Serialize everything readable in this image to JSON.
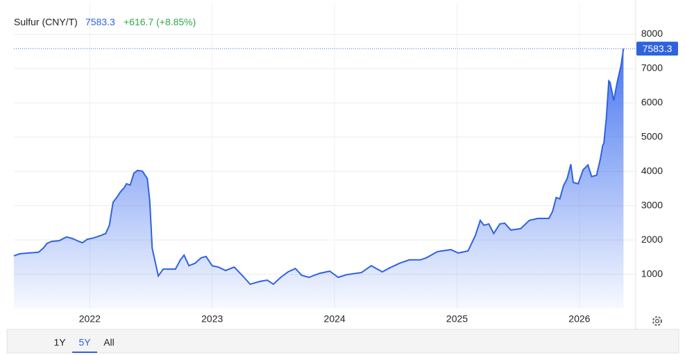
{
  "chart_data": {
    "type": "area",
    "title": "Sulfur (CNY/T)",
    "change": "+616.7 (+8.85%)",
    "x": [
      2021.38,
      2021.43,
      2021.5,
      2021.58,
      2021.62,
      2021.65,
      2021.69,
      2021.75,
      2021.81,
      2021.86,
      2021.91,
      2021.94,
      2021.98,
      2022.03,
      2022.09,
      2022.13,
      2022.16,
      2022.19,
      2022.22,
      2022.25,
      2022.28,
      2022.3,
      2022.33,
      2022.36,
      2022.39,
      2022.43,
      2022.47,
      2022.49,
      2022.51,
      2022.56,
      2022.6,
      2022.66,
      2022.7,
      2022.74,
      2022.77,
      2022.81,
      2022.86,
      2022.91,
      2022.95,
      2023.0,
      2023.05,
      2023.11,
      2023.18,
      2023.25,
      2023.31,
      2023.39,
      2023.45,
      2023.5,
      2023.56,
      2023.62,
      2023.68,
      2023.73,
      2023.79,
      2023.88,
      2023.96,
      2024.03,
      2024.1,
      2024.22,
      2024.3,
      2024.39,
      2024.44,
      2024.53,
      2024.61,
      2024.7,
      2024.75,
      2024.84,
      2024.95,
      2025.01,
      2025.09,
      2025.15,
      2025.19,
      2025.22,
      2025.26,
      2025.3,
      2025.35,
      2025.39,
      2025.44,
      2025.52,
      2025.59,
      2025.66,
      2025.75,
      2025.78,
      2025.81,
      2025.84,
      2025.87,
      2025.9,
      2025.93,
      2025.95,
      2025.99,
      2026.03,
      2026.07,
      2026.1,
      2026.14,
      2026.17,
      2026.19,
      2026.2,
      2026.22,
      2026.24,
      2026.25,
      2026.28,
      2026.31,
      2026.34,
      2026.36
    ],
    "series": [
      {
        "name": "Sulfur (CNY/T)",
        "color": "#2e62e0",
        "values": [
          1540,
          1600,
          1620,
          1640,
          1760,
          1900,
          1960,
          1980,
          2090,
          2040,
          1960,
          1920,
          2020,
          2060,
          2130,
          2190,
          2430,
          3100,
          3240,
          3400,
          3520,
          3640,
          3600,
          3950,
          4030,
          4010,
          3790,
          3140,
          1760,
          950,
          1150,
          1150,
          1150,
          1420,
          1560,
          1250,
          1320,
          1480,
          1520,
          1250,
          1210,
          1110,
          1210,
          950,
          710,
          790,
          830,
          710,
          910,
          1070,
          1170,
          970,
          910,
          1030,
          1090,
          910,
          990,
          1050,
          1250,
          1070,
          1170,
          1320,
          1420,
          1420,
          1480,
          1660,
          1720,
          1620,
          1680,
          2130,
          2570,
          2430,
          2470,
          2190,
          2470,
          2490,
          2290,
          2330,
          2570,
          2630,
          2630,
          2830,
          3240,
          3200,
          3580,
          3790,
          4210,
          3680,
          3640,
          4050,
          4190,
          3850,
          3890,
          4350,
          4760,
          4820,
          5570,
          6640,
          6600,
          6070,
          6620,
          7090,
          7583.3
        ]
      }
    ],
    "xlim": [
      2021.38,
      2026.46
    ],
    "xticks": [
      2022,
      2023,
      2024,
      2025,
      2026
    ],
    "ylim": [
      0,
      8900
    ],
    "yticks": [
      1000,
      2000,
      3000,
      4000,
      5000,
      6000,
      7000,
      8000
    ],
    "grid": true
  },
  "range_buttons": [
    "1Y",
    "5Y",
    "All"
  ]
}
